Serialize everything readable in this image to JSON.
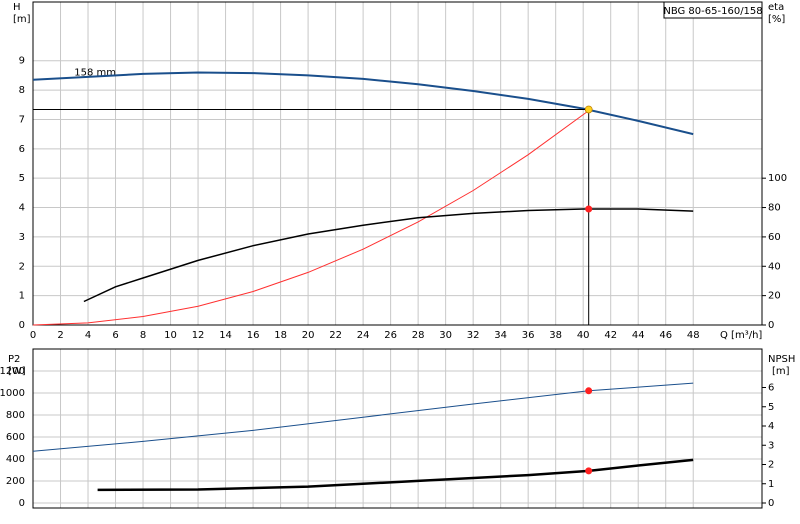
{
  "chart_data": [
    {
      "type": "line",
      "title": "NBG 80-65-160/158",
      "ylabel": [
        "H",
        "[m]"
      ],
      "y2label": [
        "eta",
        "[%]"
      ],
      "xlabel": "Q [m³/h]",
      "annotation": {
        "text": "158 mm",
        "x": 3,
        "y": 8.6
      },
      "xlim": [
        0,
        53
      ],
      "xticks": [
        0,
        2,
        4,
        6,
        8,
        10,
        12,
        14,
        16,
        18,
        20,
        22,
        24,
        26,
        28,
        30,
        32,
        34,
        36,
        38,
        40,
        42,
        44,
        46,
        48
      ],
      "ylim": [
        0,
        11
      ],
      "yticks": [
        0,
        1,
        2,
        3,
        4,
        5,
        6,
        7,
        8,
        9
      ],
      "y2lim": [
        0,
        220
      ],
      "y2ticks": [
        0,
        20,
        40,
        60,
        80,
        100
      ],
      "grid": true,
      "series": [
        {
          "type": "line",
          "color": "#1a4f8c",
          "width": 2,
          "x": [
            0,
            4,
            8,
            12,
            16,
            20,
            24,
            28,
            32,
            36,
            40,
            44,
            48
          ],
          "values": [
            8.35,
            8.45,
            8.55,
            8.6,
            8.58,
            8.5,
            8.38,
            8.2,
            7.97,
            7.7,
            7.37,
            6.95,
            6.5
          ]
        },
        {
          "type": "line",
          "color": "#ff3030",
          "width": 1,
          "x": [
            0,
            4,
            8,
            12,
            16,
            20,
            24,
            28,
            32,
            36,
            40.4
          ],
          "values": [
            0,
            0.07,
            0.29,
            0.64,
            1.14,
            1.79,
            2.58,
            3.51,
            4.58,
            5.8,
            7.3
          ]
        },
        {
          "type": "line",
          "color": "#000000",
          "width": 1.5,
          "axis": "y2",
          "x": [
            3.7,
            6,
            8,
            12,
            16,
            20,
            24,
            28,
            32,
            36,
            40,
            44,
            48
          ],
          "values": [
            16,
            26,
            32,
            44,
            54,
            62,
            68,
            73,
            76,
            78,
            79,
            79,
            77.6
          ]
        },
        {
          "type": "point",
          "color": "#ff2020",
          "axis": "y2",
          "x": [
            40.4
          ],
          "values": [
            79
          ]
        },
        {
          "type": "point",
          "color": "#ffd21f",
          "guides": true,
          "x": [
            40.4
          ],
          "values": [
            7.34
          ]
        }
      ]
    },
    {
      "type": "line",
      "ylabel": [
        "P2",
        "[W]"
      ],
      "y2label": [
        "NPSH",
        "[m]"
      ],
      "xlim": [
        0,
        53
      ],
      "ylim": [
        0,
        1400
      ],
      "yticks": [
        0,
        200,
        400,
        600,
        800,
        1000,
        1200
      ],
      "y2lim": [
        0,
        8
      ],
      "y2ticks": [
        0,
        1,
        2,
        3,
        4,
        5,
        6
      ],
      "grid": true,
      "series": [
        {
          "type": "line",
          "color": "#1a4f8c",
          "width": 1,
          "x": [
            0,
            8,
            16,
            24,
            32,
            40.4,
            48
          ],
          "values": [
            470,
            560,
            660,
            780,
            900,
            1020,
            1090
          ]
        },
        {
          "type": "line",
          "color": "#000000",
          "width": 2.5,
          "axis": "y2",
          "x": [
            4.7,
            12,
            20,
            28,
            36,
            40.4,
            44,
            48
          ],
          "values": [
            0.68,
            0.7,
            0.85,
            1.15,
            1.45,
            1.67,
            1.95,
            2.24
          ]
        },
        {
          "type": "point",
          "color": "#ff2020",
          "x": [
            40.4
          ],
          "values": [
            1020
          ]
        },
        {
          "type": "point",
          "color": "#ff2020",
          "axis": "y2",
          "x": [
            40.4
          ],
          "values": [
            1.67
          ]
        }
      ]
    }
  ]
}
